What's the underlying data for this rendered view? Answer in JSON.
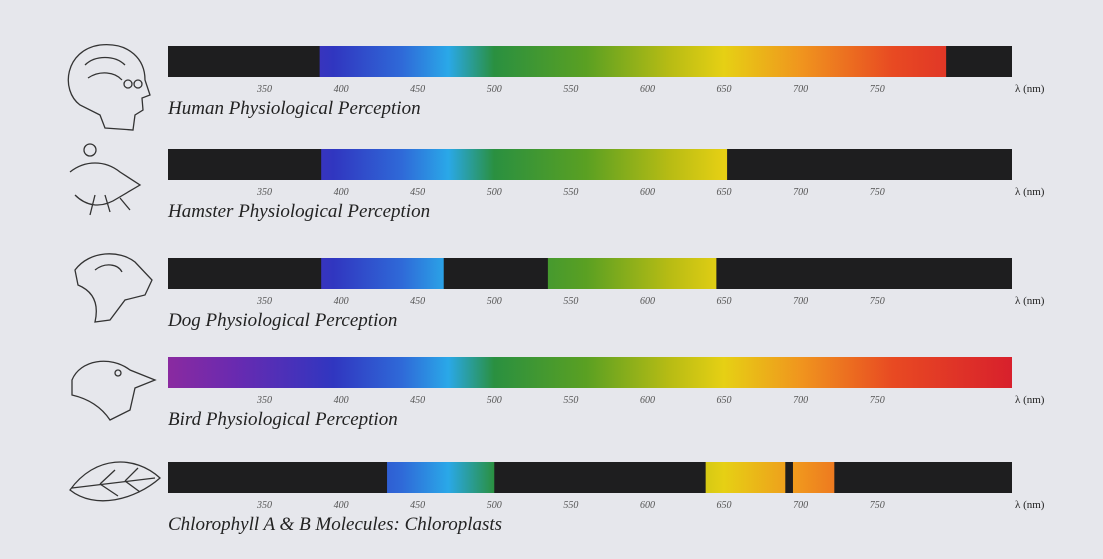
{
  "chart_data": [
    {
      "type": "spectrum",
      "title": "Human Physiological Perception",
      "xlabel": "λ (nm)",
      "xlim": [
        287,
        838
      ],
      "xticks": [
        350,
        400,
        450,
        500,
        550,
        600,
        650,
        700,
        750
      ],
      "bands": [
        [
          386,
          795
        ]
      ]
    },
    {
      "type": "spectrum",
      "title": "Hamster Physiological Perception",
      "xlabel": "λ (nm)",
      "xlim": [
        287,
        838
      ],
      "xticks": [
        350,
        400,
        450,
        500,
        550,
        600,
        650,
        700,
        750
      ],
      "bands": [
        [
          387,
          652
        ]
      ]
    },
    {
      "type": "spectrum",
      "title": "Dog Physiological Perception",
      "xlabel": "λ (nm)",
      "xlim": [
        287,
        838
      ],
      "xticks": [
        350,
        400,
        450,
        500,
        550,
        600,
        650,
        700,
        750
      ],
      "bands": [
        [
          387,
          467
        ],
        [
          535,
          645
        ]
      ]
    },
    {
      "type": "spectrum",
      "title": "Bird Physiological Perception",
      "xlabel": "λ (nm)",
      "xlim": [
        287,
        838
      ],
      "xticks": [
        350,
        400,
        450,
        500,
        550,
        600,
        650,
        700,
        750
      ],
      "bands": [
        [
          287,
          838
        ]
      ]
    },
    {
      "type": "spectrum",
      "title": "Chlorophyll A & B Molecules: Chloroplasts",
      "xlabel": "λ (nm)",
      "xlim": [
        287,
        838
      ],
      "xticks": [
        350,
        400,
        450,
        500,
        550,
        600,
        650,
        700,
        750
      ],
      "bands": [
        [
          430,
          500
        ],
        [
          638,
          690
        ],
        [
          695,
          722
        ]
      ]
    }
  ]
}
